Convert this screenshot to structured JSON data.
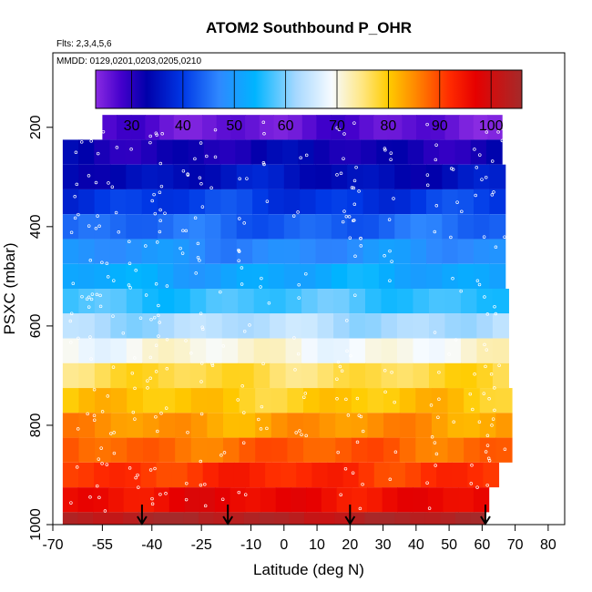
{
  "chart_data": {
    "type": "heatmap",
    "title": "ATOM2 Southbound P_OHR",
    "flights_note": "Flts: 2,3,4,5,6",
    "dates_note": "MMDD: 0129,0201,0203,0205,0210",
    "xlabel": "Latitude (deg N)",
    "ylabel": "PSXC (mbar)",
    "xlim": [
      -70,
      85
    ],
    "ylim": [
      1000,
      50
    ],
    "x_ticks": [
      -70,
      -55,
      -40,
      -25,
      -10,
      0,
      10,
      20,
      30,
      40,
      50,
      60,
      70,
      80
    ],
    "y_ticks": [
      200,
      400,
      600,
      800,
      1000
    ],
    "colorbar": {
      "range": [
        23,
        106
      ],
      "ticks": [
        30,
        40,
        50,
        60,
        70,
        80,
        90,
        100
      ],
      "stops": [
        {
          "v": 23,
          "color": "#8a2be2"
        },
        {
          "v": 28,
          "color": "#4400cc"
        },
        {
          "v": 33,
          "color": "#0000aa"
        },
        {
          "v": 40,
          "color": "#0038e6"
        },
        {
          "v": 47,
          "color": "#2f88ff"
        },
        {
          "v": 54,
          "color": "#00b4ff"
        },
        {
          "v": 62,
          "color": "#a6d8ff"
        },
        {
          "v": 69,
          "color": "#f7fbff"
        },
        {
          "v": 75,
          "color": "#ffe680"
        },
        {
          "v": 80,
          "color": "#ffcc00"
        },
        {
          "v": 85,
          "color": "#ff8c00"
        },
        {
          "v": 92,
          "color": "#ff2a00"
        },
        {
          "v": 97,
          "color": "#e60000"
        },
        {
          "v": 106,
          "color": "#a52a2a"
        }
      ]
    },
    "pressure_bands": [
      {
        "p_top": 175,
        "p_bot": 225,
        "lat_min": -55,
        "lat_max": 66,
        "value": 26
      },
      {
        "p_top": 225,
        "p_bot": 275,
        "lat_min": -67,
        "lat_max": 66,
        "value": 32
      },
      {
        "p_top": 275,
        "p_bot": 325,
        "lat_min": -67,
        "lat_max": 67,
        "value": 35
      },
      {
        "p_top": 325,
        "p_bot": 375,
        "lat_min": -67,
        "lat_max": 67,
        "value": 40
      },
      {
        "p_top": 375,
        "p_bot": 425,
        "lat_min": -67,
        "lat_max": 67,
        "value": 44
      },
      {
        "p_top": 425,
        "p_bot": 475,
        "lat_min": -67,
        "lat_max": 67,
        "value": 48
      },
      {
        "p_top": 475,
        "p_bot": 525,
        "lat_min": -67,
        "lat_max": 67,
        "value": 52
      },
      {
        "p_top": 525,
        "p_bot": 575,
        "lat_min": -67,
        "lat_max": 68,
        "value": 57
      },
      {
        "p_top": 575,
        "p_bot": 625,
        "lat_min": -67,
        "lat_max": 68,
        "value": 63
      },
      {
        "p_top": 625,
        "p_bot": 675,
        "lat_min": -67,
        "lat_max": 68,
        "value": 70
      },
      {
        "p_top": 675,
        "p_bot": 725,
        "lat_min": -67,
        "lat_max": 68,
        "value": 77
      },
      {
        "p_top": 725,
        "p_bot": 775,
        "lat_min": -67,
        "lat_max": 69,
        "value": 80
      },
      {
        "p_top": 775,
        "p_bot": 825,
        "lat_min": -67,
        "lat_max": 69,
        "value": 84
      },
      {
        "p_top": 825,
        "p_bot": 875,
        "lat_min": -67,
        "lat_max": 69,
        "value": 88
      },
      {
        "p_top": 875,
        "p_bot": 925,
        "lat_min": -67,
        "lat_max": 65,
        "value": 92
      },
      {
        "p_top": 925,
        "p_bot": 975,
        "lat_min": -67,
        "lat_max": 62,
        "value": 96
      },
      {
        "p_top": 975,
        "p_bot": 1025,
        "lat_min": -67,
        "lat_max": 61,
        "value": 104
      }
    ],
    "profile_latitudes": [
      -43,
      -17,
      20,
      61
    ],
    "arrow_color": "#000000",
    "frame_color": "#000000",
    "point_color": "#ffffff"
  }
}
